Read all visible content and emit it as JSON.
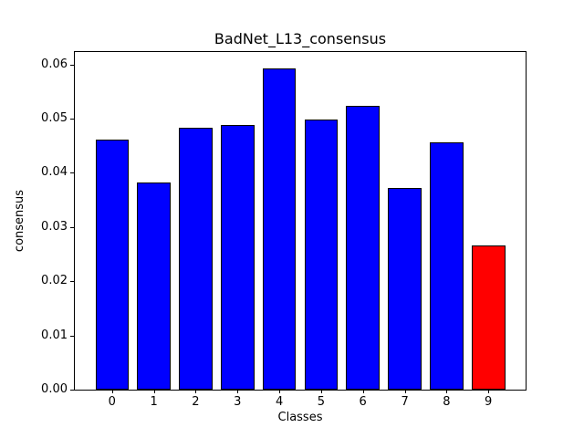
{
  "figure": {
    "background": "#ffffff"
  },
  "chart_data": {
    "type": "bar",
    "title": "BadNet_L13_consensus",
    "xlabel": "Classes",
    "ylabel": "consensus",
    "categories": [
      "0",
      "1",
      "2",
      "3",
      "4",
      "5",
      "6",
      "7",
      "8",
      "9"
    ],
    "values": [
      0.0462,
      0.0383,
      0.0483,
      0.0488,
      0.0592,
      0.0499,
      0.0523,
      0.0372,
      0.0456,
      0.0266
    ],
    "bar_colors": [
      "#0000ff",
      "#0000ff",
      "#0000ff",
      "#0000ff",
      "#0000ff",
      "#0000ff",
      "#0000ff",
      "#0000ff",
      "#0000ff",
      "#ff0000"
    ],
    "edge_color": "#000000",
    "bar_width": 0.8,
    "xlim": [
      -0.89,
      9.89
    ],
    "ylim": [
      0,
      0.0623
    ],
    "yticks": [
      {
        "label": "0.00",
        "value": 0.0
      },
      {
        "label": "0.01",
        "value": 0.01
      },
      {
        "label": "0.02",
        "value": 0.02
      },
      {
        "label": "0.03",
        "value": 0.03
      },
      {
        "label": "0.04",
        "value": 0.04
      },
      {
        "label": "0.05",
        "value": 0.05
      },
      {
        "label": "0.06",
        "value": 0.06
      }
    ],
    "grid": false,
    "legend": null
  }
}
